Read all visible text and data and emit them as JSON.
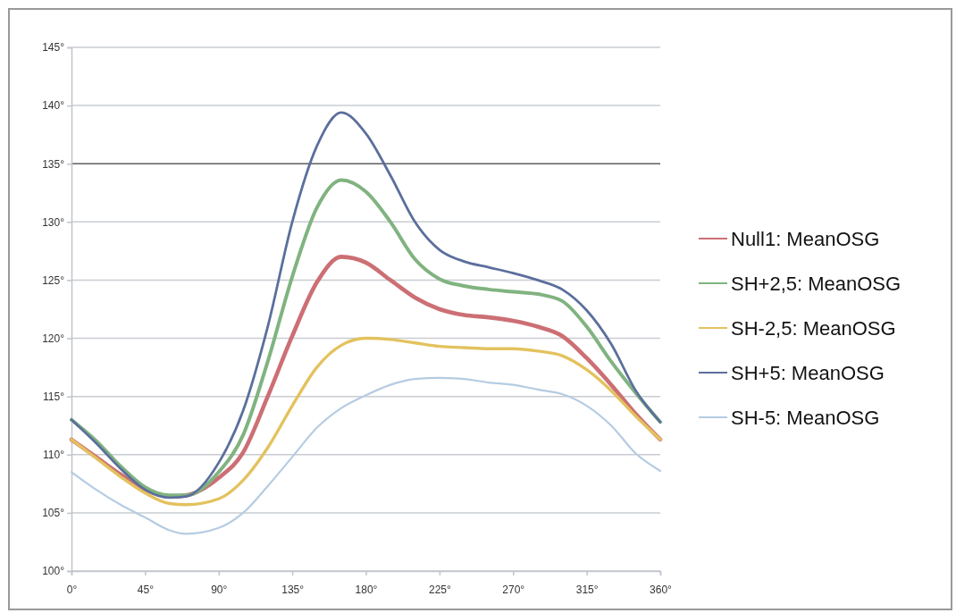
{
  "chart_data": {
    "type": "line",
    "x": [
      0,
      15,
      30,
      45,
      60,
      70,
      90,
      105,
      120,
      135,
      150,
      165,
      180,
      195,
      210,
      225,
      240,
      255,
      270,
      285,
      300,
      315,
      330,
      345,
      360
    ],
    "xlim": [
      0,
      360
    ],
    "xticks": [
      {
        "value": 0,
        "label": "0°"
      },
      {
        "value": 45,
        "label": "45°"
      },
      {
        "value": 90,
        "label": "90°"
      },
      {
        "value": 135,
        "label": "135°"
      },
      {
        "value": 180,
        "label": "180°"
      },
      {
        "value": 225,
        "label": "225°"
      },
      {
        "value": 270,
        "label": "270°"
      },
      {
        "value": 315,
        "label": "315°"
      },
      {
        "value": 360,
        "label": "360°"
      }
    ],
    "ylim": [
      100,
      145
    ],
    "yticks": [
      {
        "value": 100,
        "label": "100°"
      },
      {
        "value": 105,
        "label": "105°"
      },
      {
        "value": 110,
        "label": "110°"
      },
      {
        "value": 115,
        "label": "115°"
      },
      {
        "value": 120,
        "label": "120°"
      },
      {
        "value": 125,
        "label": "125°"
      },
      {
        "value": 130,
        "label": "130°"
      },
      {
        "value": 135,
        "label": "135°"
      },
      {
        "value": 140,
        "label": "140°"
      },
      {
        "value": 145,
        "label": "145°"
      }
    ],
    "grid": "y",
    "legend": "right",
    "marker": "none",
    "line_style": "solid",
    "ref_lines": [
      {
        "axis": "y",
        "value": 135,
        "color": "#666666"
      }
    ],
    "series": [
      {
        "name": "Null1: MeanOSG",
        "color": "#cc6f74",
        "values": [
          111.3,
          109.8,
          108.3,
          107,
          106.4,
          106.5,
          108,
          110.2,
          115,
          120.2,
          124.8,
          127,
          126.5,
          125,
          123.5,
          122.5,
          122,
          121.8,
          121.5,
          121,
          120.2,
          118.3,
          116,
          113.5,
          111.3
        ]
      },
      {
        "name": "SH+2,5: MeanOSG",
        "color": "#80b380",
        "values": [
          113,
          111.2,
          109,
          107.2,
          106.5,
          106.5,
          108.5,
          111.7,
          118,
          125.3,
          131.2,
          133.6,
          132.6,
          130,
          126.8,
          125.1,
          124.5,
          124.2,
          124,
          123.8,
          123.2,
          121,
          118,
          115.3,
          112.8
        ]
      },
      {
        "name": "SH-2,5: MeanOSG",
        "color": "#e3c25e",
        "values": [
          111.3,
          109.7,
          108.1,
          106.7,
          105.8,
          105.7,
          106.2,
          107.8,
          110.6,
          114.2,
          117.5,
          119.4,
          120,
          119.9,
          119.6,
          119.3,
          119.2,
          119.1,
          119.1,
          118.9,
          118.5,
          117.3,
          115.5,
          113.3,
          111.3
        ]
      },
      {
        "name": "SH+5: MeanOSG",
        "color": "#5b6f9c",
        "values": [
          113,
          111,
          108.8,
          107,
          106.3,
          106.4,
          109.3,
          113.8,
          121,
          130,
          136.5,
          139.4,
          137.6,
          134,
          130,
          127.6,
          126.6,
          126.1,
          125.6,
          125,
          124.2,
          122.4,
          119.5,
          115.5,
          112.8
        ]
      },
      {
        "name": "SH-5: MeanOSG",
        "color": "#b5cce2",
        "values": [
          108.5,
          107,
          105.7,
          104.6,
          103.5,
          103.2,
          103.7,
          105,
          107.3,
          109.8,
          112.3,
          114,
          115.1,
          116,
          116.5,
          116.6,
          116.5,
          116.2,
          116,
          115.6,
          115.2,
          114.2,
          112.5,
          110.1,
          108.6
        ]
      }
    ]
  }
}
